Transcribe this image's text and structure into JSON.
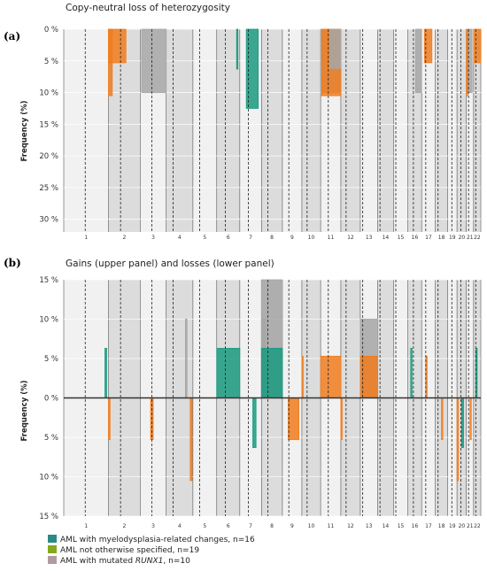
{
  "colors": {
    "mrc": "#2a8a86",
    "nos": "#84a81e",
    "runx1": "#b09aa2",
    "mrc_bar": "#1a9a80",
    "nos_bar": "#f07d1e",
    "runx1_bar": "#a6a6a6"
  },
  "chromosomes": [
    "1",
    "2",
    "3",
    "4",
    "5",
    "6",
    "7",
    "8",
    "9",
    "10",
    "11",
    "12",
    "13",
    "14",
    "15",
    "16",
    "17",
    "18",
    "19",
    "20",
    "21",
    "22"
  ],
  "chart_data": [
    {
      "id": "a",
      "panel_label": "(a)",
      "title": "Copy-neutral loss of heterozygosity",
      "type": "bar",
      "ylabel": "Frequency (%)",
      "ylim": [
        0,
        32
      ],
      "yticks": [
        0,
        5,
        10,
        15,
        20,
        25,
        30
      ],
      "ytick_labels": [
        "0 %",
        "5 %",
        "10 %",
        "15 %",
        "20 %",
        "25 %",
        "30 %"
      ],
      "direction": "down",
      "segments": [
        {
          "group": "AML with mutated RUNX1",
          "chromosome": "3",
          "start": 0.05,
          "end": 1.0,
          "value": 10
        },
        {
          "group": "AML not otherwise specified",
          "chromosome": "2",
          "start": 0.0,
          "end": 0.55,
          "value": 5.3
        },
        {
          "group": "AML not otherwise specified",
          "chromosome": "2",
          "start": 0.0,
          "end": 0.12,
          "value": 10.5
        },
        {
          "group": "AML with myelodysplasia-related changes",
          "chromosome": "6",
          "start": 0.86,
          "end": 0.9,
          "value": 6.3
        },
        {
          "group": "AML with myelodysplasia-related changes",
          "chromosome": "7",
          "start": 0.3,
          "end": 0.85,
          "value": 12.5
        },
        {
          "group": "AML with mutated RUNX1",
          "chromosome": "11",
          "start": 0.0,
          "end": 1.0,
          "value": 10
        },
        {
          "group": "AML not otherwise specified",
          "chromosome": "11",
          "start": 0.05,
          "end": 1.0,
          "value": 10.5
        },
        {
          "group": "AML with mutated RUNX1",
          "chromosome": "11",
          "start": 0.45,
          "end": 1.0,
          "value": 6.2
        },
        {
          "group": "AML with mutated RUNX1",
          "chromosome": "16",
          "start": 0.55,
          "end": 1.0,
          "value": 10
        },
        {
          "group": "AML not otherwise specified",
          "chromosome": "17",
          "start": 0.2,
          "end": 0.75,
          "value": 5.3
        },
        {
          "group": "AML with mutated RUNX1",
          "chromosome": "21",
          "start": 0.0,
          "end": 0.8,
          "value": 10
        },
        {
          "group": "AML not otherwise specified",
          "chromosome": "21",
          "start": 0.0,
          "end": 0.2,
          "value": 10.5
        },
        {
          "group": "AML not otherwise specified",
          "chromosome": "22",
          "start": 0.0,
          "end": 1.0,
          "value": 5.3
        }
      ]
    },
    {
      "id": "b",
      "panel_label": "(b)",
      "title": "Gains (upper panel) and losses (lower panel)",
      "type": "bar",
      "ylabel": "Frequency (%)",
      "ylim": [
        -15,
        15
      ],
      "yticks": [
        15,
        10,
        5,
        0,
        -5,
        -10,
        -15
      ],
      "ytick_labels": [
        "15 %",
        "10 %",
        "5 %",
        "0 %",
        "5 %",
        "10 %",
        "15 %"
      ],
      "gains": [
        {
          "group": "AML with myelodysplasia-related changes",
          "chromosome": "1",
          "start": 0.92,
          "end": 0.96,
          "value": 6.3
        },
        {
          "group": "AML with mutated RUNX1",
          "chromosome": "4",
          "start": 0.72,
          "end": 0.78,
          "value": 10
        },
        {
          "group": "AML with myelodysplasia-related changes",
          "chromosome": "6",
          "start": 0.0,
          "end": 1.0,
          "value": 6.3
        },
        {
          "group": "AML with mutated RUNX1",
          "chromosome": "8",
          "start": 0.0,
          "end": 1.0,
          "value": 15
        },
        {
          "group": "AML with mutated RUNX1",
          "chromosome": "8",
          "start": 0.0,
          "end": 0.2,
          "value": 10
        },
        {
          "group": "AML with myelodysplasia-related changes",
          "chromosome": "8",
          "start": 0.0,
          "end": 1.0,
          "value": 6.3
        },
        {
          "group": "AML not otherwise specified",
          "chromosome": "10",
          "start": 0.0,
          "end": 0.05,
          "value": 5.3
        },
        {
          "group": "AML not otherwise specified",
          "chromosome": "11",
          "start": 0.0,
          "end": 1.0,
          "value": 5.3
        },
        {
          "group": "AML with mutated RUNX1",
          "chromosome": "13",
          "start": 0.0,
          "end": 1.0,
          "value": 10
        },
        {
          "group": "AML not otherwise specified",
          "chromosome": "13",
          "start": 0.0,
          "end": 1.0,
          "value": 5.3
        },
        {
          "group": "AML with myelodysplasia-related changes",
          "chromosome": "16",
          "start": 0.2,
          "end": 0.3,
          "value": 6.3
        },
        {
          "group": "AML not otherwise specified",
          "chromosome": "17",
          "start": 0.3,
          "end": 0.4,
          "value": 5.3
        },
        {
          "group": "AML with myelodysplasia-related changes",
          "chromosome": "22",
          "start": 0.3,
          "end": 0.5,
          "value": 6.3
        }
      ],
      "losses": [
        {
          "group": "AML not otherwise specified",
          "chromosome": "2",
          "start": 0.0,
          "end": 0.05,
          "value": 5.3
        },
        {
          "group": "AML not otherwise specified",
          "chromosome": "3",
          "start": 0.4,
          "end": 0.5,
          "value": 5.3
        },
        {
          "group": "AML not otherwise specified",
          "chromosome": "4",
          "start": 0.9,
          "end": 0.97,
          "value": 10.5
        },
        {
          "group": "AML with myelodysplasia-related changes",
          "chromosome": "7",
          "start": 0.6,
          "end": 0.75,
          "value": 6.3
        },
        {
          "group": "AML not otherwise specified",
          "chromosome": "9",
          "start": 0.3,
          "end": 0.85,
          "value": 5.3
        },
        {
          "group": "AML not otherwise specified",
          "chromosome": "12",
          "start": 0.0,
          "end": 0.05,
          "value": 5.3
        },
        {
          "group": "AML not otherwise specified",
          "chromosome": "18",
          "start": 0.5,
          "end": 0.6,
          "value": 5.3
        },
        {
          "group": "AML not otherwise specified",
          "chromosome": "20",
          "start": 0.0,
          "end": 0.15,
          "value": 10.5
        },
        {
          "group": "AML with myelodysplasia-related changes",
          "chromosome": "20",
          "start": 0.5,
          "end": 0.7,
          "value": 6.3
        },
        {
          "group": "AML not otherwise specified",
          "chromosome": "21",
          "start": 0.5,
          "end": 0.6,
          "value": 5.3
        }
      ]
    }
  ],
  "legend": [
    {
      "key": "mrc",
      "label": "AML with myelodysplasia-related changes, n=16"
    },
    {
      "key": "nos",
      "label": "AML not otherwise specified, n=19"
    },
    {
      "key": "runx1",
      "label_prefix": "AML with mutated ",
      "label_italic": "RUNX1",
      "label_suffix": ", n=10"
    }
  ]
}
